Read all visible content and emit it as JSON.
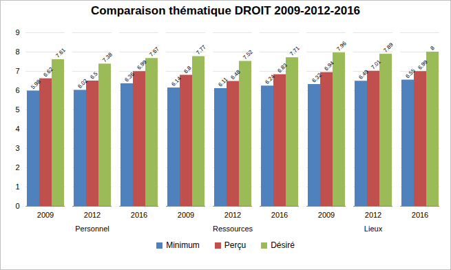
{
  "chart_data": {
    "type": "bar",
    "title": "Comparaison thématique DROIT 2009-2012-2016",
    "categories": [
      "2009",
      "2012",
      "2016",
      "2009",
      "2012",
      "2016",
      "2009",
      "2012",
      "2016"
    ],
    "category_groups": [
      "Personnel",
      "Personnel",
      "Personnel",
      "Ressources",
      "Ressources",
      "Ressources",
      "Lieux",
      "Lieux",
      "Lieux"
    ],
    "series": [
      {
        "name": "Minimum",
        "color": "#4f81bd",
        "values": [
          5.98,
          6.02,
          6.36,
          6.14,
          6.11,
          6.24,
          6.32,
          6.49,
          6.55
        ]
      },
      {
        "name": "Perçu",
        "color": "#c0504d",
        "values": [
          6.62,
          6.5,
          6.99,
          6.8,
          6.48,
          6.83,
          6.94,
          7.01,
          6.99
        ]
      },
      {
        "name": "Désiré",
        "color": "#9bbb59",
        "values": [
          7.61,
          7.38,
          7.67,
          7.77,
          7.52,
          7.71,
          7.96,
          7.89,
          8
        ]
      }
    ],
    "ylim": [
      0,
      9
    ],
    "yticks": [
      0,
      1,
      2,
      3,
      4,
      5,
      6,
      7,
      8,
      9
    ],
    "grid": true,
    "data_labels": true,
    "legend": "bottom"
  }
}
